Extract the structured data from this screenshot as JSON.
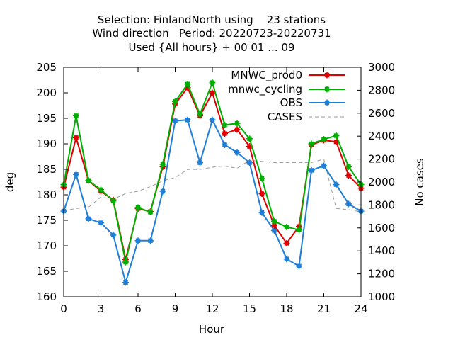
{
  "chart_data": {
    "type": "line",
    "title_lines": [
      "Selection: FinlandNorth using    23 stations",
      "Wind direction   Period: 20220723-20220731",
      "Used {All hours} + 00 01 ... 09"
    ],
    "xlabel": "Hour",
    "ylabel": "deg",
    "y2label": "No cases",
    "xlim": [
      0,
      24
    ],
    "ylim": [
      160,
      205
    ],
    "y2lim": [
      1000,
      3000
    ],
    "xticks": [
      "0",
      "3",
      "6",
      "9",
      "12",
      "15",
      "18",
      "21",
      "24"
    ],
    "yticks": [
      "160",
      "165",
      "170",
      "175",
      "180",
      "185",
      "190",
      "195",
      "200",
      "205"
    ],
    "y2ticks": [
      "1000",
      "1200",
      "1400",
      "1600",
      "1800",
      "2000",
      "2200",
      "2400",
      "2600",
      "2800",
      "3000"
    ],
    "legend_position": "top-right",
    "x": [
      0,
      1,
      2,
      3,
      4,
      5,
      6,
      7,
      8,
      9,
      10,
      11,
      12,
      13,
      14,
      15,
      16,
      17,
      18,
      19,
      20,
      21,
      22,
      23,
      24
    ],
    "series": [
      {
        "name": "MNWC_prod0",
        "color": "#e00000",
        "axis": "y",
        "style": "line-points",
        "values": [
          181.5,
          191.2,
          182.8,
          180.7,
          179.0,
          167.3,
          177.3,
          176.7,
          185.5,
          197.8,
          201.0,
          195.5,
          200.0,
          192.0,
          192.8,
          189.5,
          180.2,
          174.0,
          170.5,
          173.8,
          189.8,
          190.7,
          190.4,
          183.8,
          181.3
        ]
      },
      {
        "name": "mnwc_cycling",
        "color": "#00b000",
        "axis": "y",
        "style": "line-points",
        "values": [
          182.0,
          195.5,
          182.8,
          181.0,
          178.8,
          166.8,
          177.5,
          176.6,
          186.0,
          198.3,
          201.7,
          195.8,
          202.0,
          193.7,
          194.0,
          191.0,
          183.2,
          174.8,
          173.7,
          173.1,
          190.0,
          190.9,
          191.6,
          185.5,
          182.0
        ]
      },
      {
        "name": "OBS",
        "color": "#1f7fd8",
        "axis": "y",
        "style": "line-points",
        "values": [
          176.8,
          184.0,
          175.3,
          174.5,
          172.1,
          162.8,
          171.0,
          171.0,
          180.7,
          194.5,
          194.7,
          186.3,
          194.7,
          189.8,
          188.3,
          186.3,
          176.5,
          173.0,
          167.4,
          166.0,
          184.8,
          185.7,
          182.0,
          178.2,
          176.8
        ]
      },
      {
        "name": "CASES",
        "color": "#999999",
        "axis": "y2",
        "style": "dashed",
        "values": [
          1750,
          1770,
          1780,
          1870,
          1850,
          1900,
          1920,
          1960,
          2010,
          2040,
          2110,
          2110,
          2130,
          2140,
          2120,
          2190,
          2180,
          2170,
          2170,
          2170,
          2170,
          2200,
          1770,
          1760,
          1740
        ]
      }
    ]
  }
}
